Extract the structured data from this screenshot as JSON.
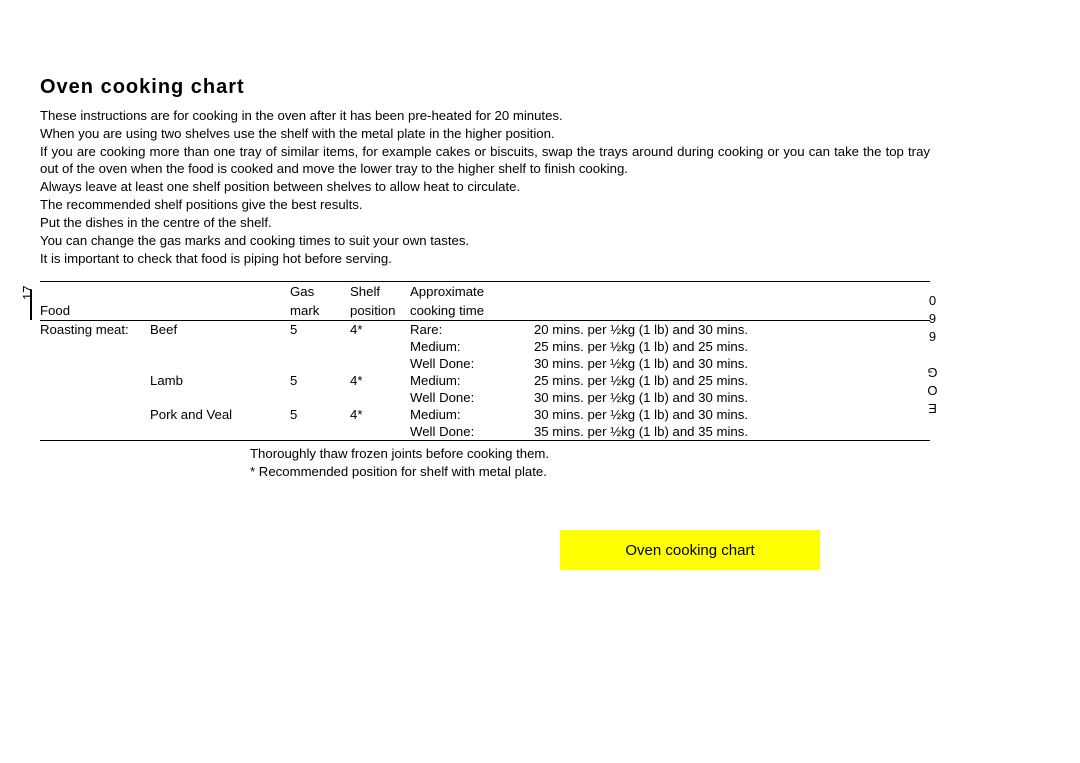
{
  "title": "Oven cooking chart",
  "intro": [
    "These instructions are for cooking in the oven after it has been pre-heated for 20 minutes.",
    "When you are using two shelves use the shelf with the metal plate in the higher position.",
    "If you are cooking more than one tray of similar items, for example cakes or biscuits, swap the trays around  during cooking or you can take the top tray out of the oven when the food is cooked and move the lower tray to the higher shelf  to finish cooking.",
    "Always leave at least one shelf  position between shelves to allow heat to circulate.",
    "The recommended shelf positions give the best  results.",
    "Put the dishes in the centre of the shelf.",
    "You can  change the gas marks and cooking times to suit your own tastes.",
    "It is important to check that food is piping hot before serving."
  ],
  "table": {
    "headers": {
      "food": "Food",
      "gas1": "Gas",
      "gas2": "mark",
      "shelf1": "Shelf",
      "shelf2": "position",
      "approx1": "Approximate",
      "approx2": "cooking time"
    },
    "rows": [
      {
        "food": "Roasting meat:",
        "item": "Beef",
        "gas": "5",
        "shelf": "4*",
        "done": "Rare:",
        "time": "20 mins. per ½kg (1 lb) and 30 mins."
      },
      {
        "food": "",
        "item": "",
        "gas": "",
        "shelf": "",
        "done": "Medium:",
        "time": "25 mins. per ½kg (1 lb) and 25 mins."
      },
      {
        "food": "",
        "item": "",
        "gas": "",
        "shelf": "",
        "done": "Well Done:",
        "time": "30 mins. per ½kg (1 lb) and 30 mins."
      },
      {
        "food": "",
        "item": "Lamb",
        "gas": "5",
        "shelf": "4*",
        "done": "Medium:",
        "time": "25 mins. per ½kg (1 lb) and 25 mins."
      },
      {
        "food": "",
        "item": "",
        "gas": "",
        "shelf": "",
        "done": "Well Done:",
        "time": "30 mins. per ½kg (1 lb) and 30 mins."
      },
      {
        "food": "",
        "item": "Pork and Veal",
        "gas": "5",
        "shelf": "4*",
        "done": "Medium:",
        "time": "30 mins. per ½kg (1 lb) and 30 mins."
      },
      {
        "food": "",
        "item": "",
        "gas": "",
        "shelf": "",
        "done": "Well Done:",
        "time": "35 mins. per ½kg (1 lb) and 35 mins."
      }
    ]
  },
  "footnotes": [
    "Thoroughly thaw frozen joints before cooking them.",
    "* Recommended position for shelf with metal plate."
  ],
  "page_number": "17",
  "model_label": "EOG 660",
  "yellow_tab": "Oven cooking chart",
  "colors": {
    "yellow": "#ffff00",
    "text": "#000000",
    "bg": "#ffffff"
  }
}
